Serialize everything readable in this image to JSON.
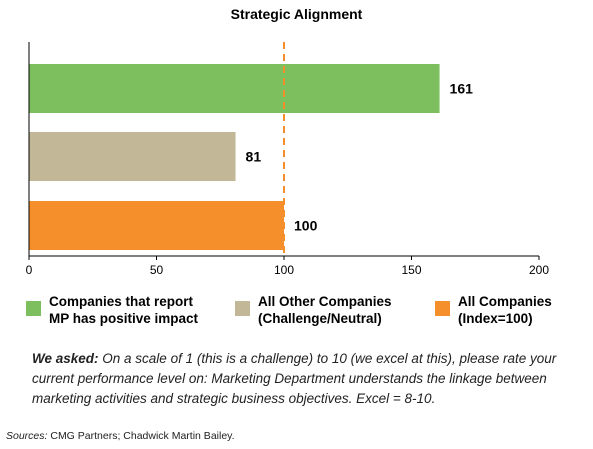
{
  "chart_data": {
    "type": "bar",
    "orientation": "horizontal",
    "title": "Strategic Alignment",
    "xlabel": "",
    "ylabel": "",
    "xlim": [
      0,
      200
    ],
    "xticks": [
      0,
      50,
      100,
      150,
      200
    ],
    "reference_line": 100,
    "grid": false,
    "legend_position": "bottom",
    "bars": [
      {
        "category": "Companies that report MP has positive impact",
        "value": 161,
        "label": "161",
        "color": "#7dbf5e"
      },
      {
        "category": "All Other Companies (Challenge/Neutral)",
        "value": 81,
        "label": "81",
        "color": "#c2b898"
      },
      {
        "category": "All Companies (Index=100)",
        "value": 100,
        "label": "100",
        "color": "#f48f2b"
      }
    ],
    "legend": [
      {
        "line1": "Companies that report",
        "line2": "MP has positive impact",
        "color": "#7dbf5e"
      },
      {
        "line1": "All Other Companies",
        "line2": "(Challenge/Neutral)",
        "color": "#c2b898"
      },
      {
        "line1": "All Companies",
        "line2": "(Index=100)",
        "color": "#f48f2b"
      }
    ]
  },
  "note": {
    "lead": "We asked:",
    "text": " On a scale of 1 (this is a challenge) to 10 (we excel at this), please rate your current performance level on: Marketing Department understands the linkage between marketing activities and strategic business objectives. Excel = 8-10."
  },
  "sources": {
    "label": "Sources:",
    "text": " CMG Partners; Chadwick Martin Bailey."
  },
  "colors": {
    "axis": "#000000",
    "reference_line": "#f48f2b"
  }
}
